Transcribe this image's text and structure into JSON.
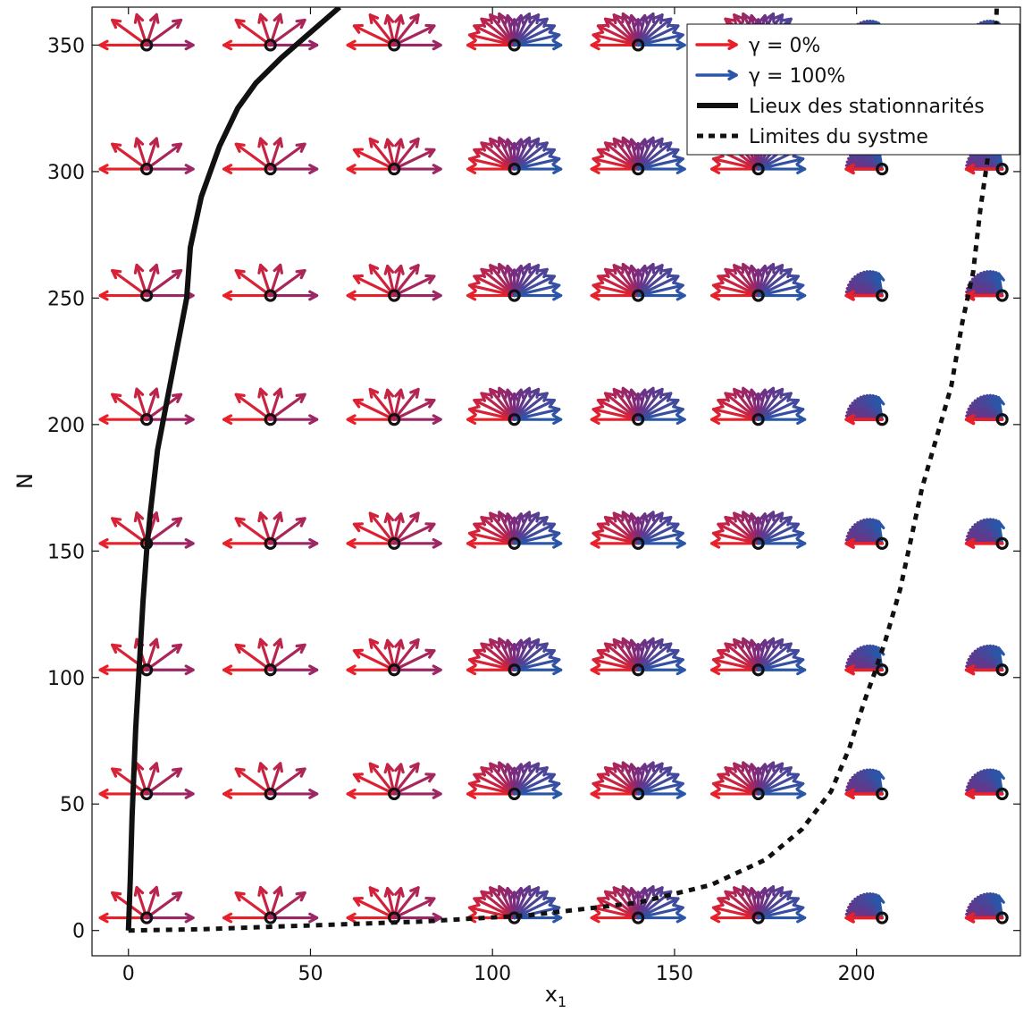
{
  "chart_data": {
    "type": "line",
    "xlabel": "x",
    "xlabel_subscript": "1",
    "ylabel": "N",
    "xlim": [
      -10,
      245
    ],
    "ylim": [
      -10,
      365
    ],
    "x_ticks": [
      0,
      50,
      100,
      150,
      200
    ],
    "y_ticks": [
      0,
      50,
      100,
      150,
      200,
      250,
      300,
      350
    ],
    "grid": false,
    "legend_position": "top-right",
    "legend": [
      {
        "label": "γ = 0%",
        "style": "arrow",
        "color": "#e8202a"
      },
      {
        "label": "γ = 100%",
        "style": "arrow",
        "color": "#2a56a8"
      },
      {
        "label": "Lieux des stationnarités",
        "style": "solid",
        "color": "#111111"
      },
      {
        "label": "Limites du systme",
        "style": "dotted",
        "color": "#111111"
      }
    ],
    "series": [
      {
        "name": "Lieux des stationnarités",
        "style": "solid",
        "color": "#111111",
        "x": [
          0,
          0.5,
          1,
          2,
          3,
          4,
          5,
          6,
          8,
          10,
          12,
          14,
          16,
          17,
          20,
          25,
          30,
          35,
          42,
          50,
          58
        ],
        "y": [
          0,
          20,
          45,
          80,
          105,
          130,
          150,
          165,
          190,
          205,
          220,
          235,
          250,
          270,
          290,
          310,
          325,
          335,
          345,
          355,
          365
        ]
      },
      {
        "name": "Limites du systme",
        "style": "dotted",
        "color": "#111111",
        "x": [
          0,
          20,
          50,
          80,
          110,
          140,
          160,
          175,
          185,
          193,
          198,
          202,
          205,
          208,
          212,
          215,
          218,
          222,
          226,
          229,
          232,
          234,
          236,
          238,
          238.5
        ],
        "y": [
          0,
          0.5,
          2,
          3.5,
          6,
          11,
          18,
          28,
          40,
          55,
          72,
          90,
          102,
          115,
          135,
          155,
          175,
          195,
          215,
          240,
          260,
          285,
          305,
          340,
          365
        ]
      }
    ],
    "vector_field": {
      "description": "Arrow fans at each grid point, colored from red (gamma = 0%) to blue (gamma = 100%)",
      "x_positions": [
        5,
        39,
        73,
        106,
        140,
        173,
        207,
        240
      ],
      "y_positions": [
        5,
        54,
        103,
        153,
        202,
        251,
        301,
        350
      ],
      "color_start": "#e8202a",
      "color_mid": "#7a2b7e",
      "color_end": "#2a56a8",
      "marker_color": "#111111"
    }
  }
}
